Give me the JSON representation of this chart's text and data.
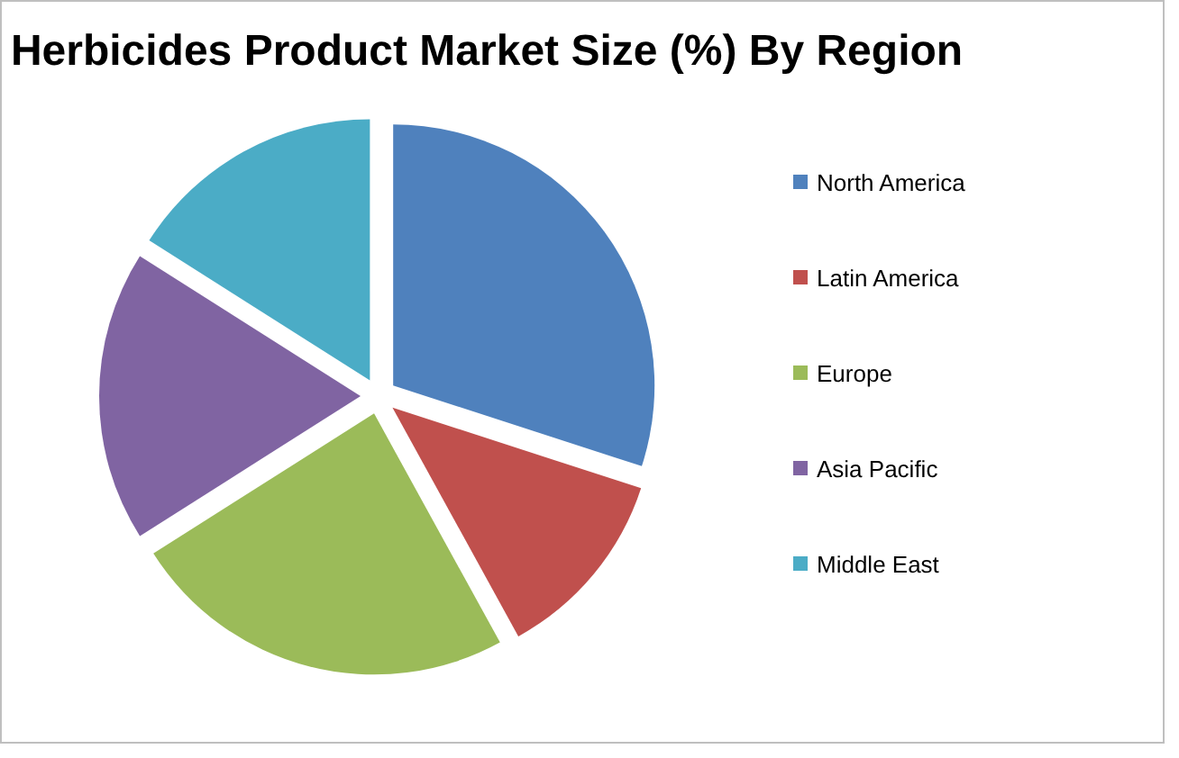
{
  "chart_data": {
    "type": "pie",
    "title": "Herbicides Product Market Size (%) By Region",
    "categories": [
      "North America",
      "Latin America",
      "Europe",
      "Asia Pacific",
      "Middle East"
    ],
    "values": [
      30,
      12,
      24,
      18,
      16
    ],
    "colors": [
      "#4f81bd",
      "#c0504d",
      "#9bbb59",
      "#8064a2",
      "#4bacc6"
    ],
    "legend": "right"
  }
}
